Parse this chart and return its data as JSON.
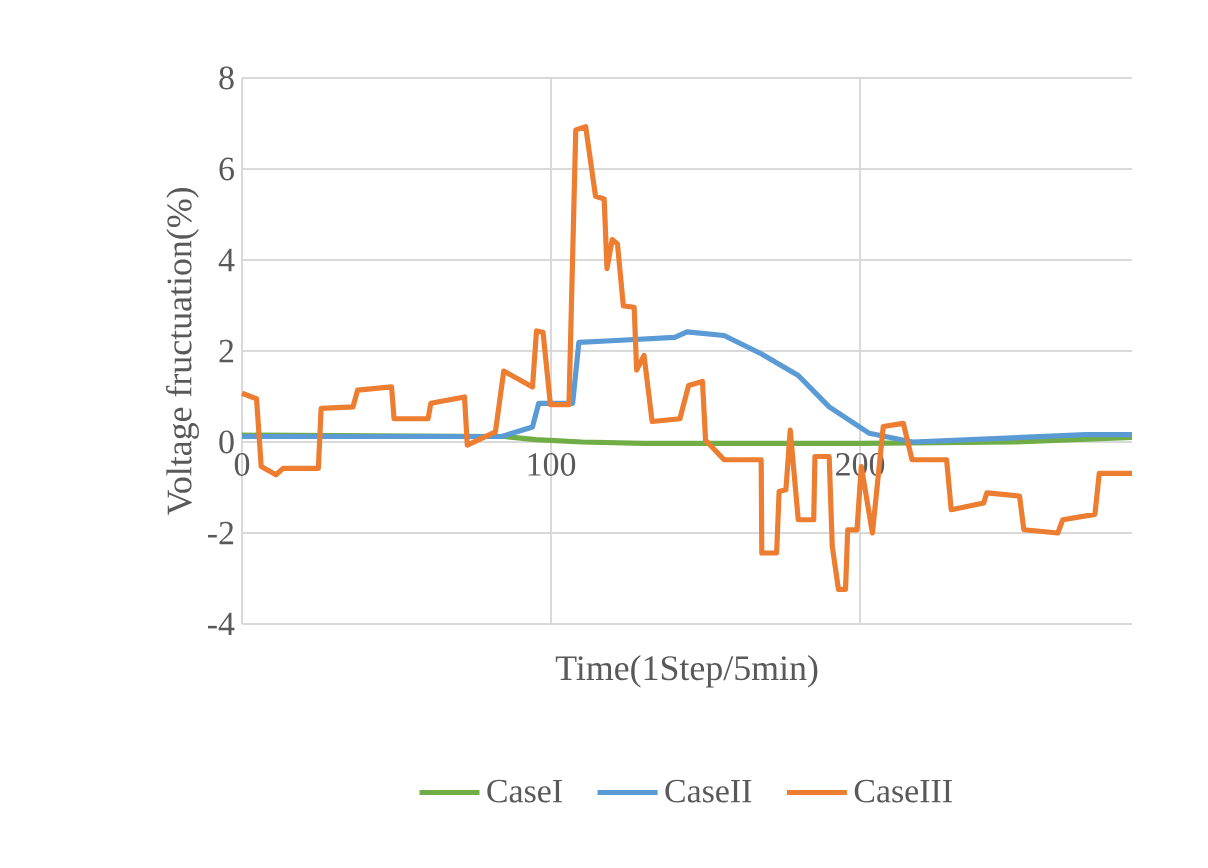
{
  "chart_data": {
    "type": "line",
    "xlabel": "Time(1Step/5min)",
    "ylabel": "Voltage fructuation(%)",
    "xlim": [
      0,
      288
    ],
    "xticks": [
      0,
      100,
      200
    ],
    "ylim": [
      -4,
      8
    ],
    "yticks": [
      -4,
      -2,
      0,
      2,
      4,
      6,
      8
    ],
    "grid": true,
    "legend": "bottom",
    "marker": "none",
    "line_style": "solid",
    "series": [
      {
        "name": "CaseI",
        "color": "#70ad47",
        "x": [
          0,
          85,
          95,
          110,
          130,
          200,
          250,
          288
        ],
        "values": [
          0.15,
          0.12,
          0.05,
          0.0,
          -0.03,
          -0.03,
          0.0,
          0.1
        ]
      },
      {
        "name": "CaseII",
        "color": "#5b9bd5",
        "x": [
          0,
          84,
          94,
          96,
          107,
          109,
          121,
          140,
          144,
          156,
          168,
          180,
          190,
          203,
          217,
          273,
          288
        ],
        "values": [
          0.12,
          0.12,
          0.33,
          0.85,
          0.85,
          2.19,
          2.23,
          2.3,
          2.42,
          2.34,
          1.94,
          1.46,
          0.77,
          0.19,
          0.0,
          0.16,
          0.16
        ]
      },
      {
        "name": "CaseIII",
        "color": "#ed7d31",
        "x": [
          0,
          4.7,
          6.2,
          11,
          13.3,
          24.7,
          25.6,
          35.9,
          37.4,
          48.4,
          49.2,
          60.2,
          61.1,
          72,
          72.9,
          82,
          84.7,
          94,
          95.3,
          97.4,
          99.8,
          105.8,
          108,
          111.2,
          114.4,
          117.2,
          118.1,
          119.8,
          121.5,
          123.4,
          126.9,
          127.7,
          130.1,
          132.7,
          141.7,
          144.5,
          149,
          150,
          156,
          168,
          168.2,
          173,
          173.8,
          176,
          177.4,
          180,
          185,
          185.4,
          190,
          191,
          193,
          195.3,
          196,
          199,
          200.4,
          204,
          207.5,
          214,
          216.8,
          228,
          229.5,
          240,
          241,
          251.6,
          253,
          264,
          265.6,
          276,
          277.4,
          288
        ],
        "values": [
          1.07,
          0.95,
          -0.54,
          -0.72,
          -0.58,
          -0.58,
          0.74,
          0.77,
          1.14,
          1.21,
          0.51,
          0.51,
          0.85,
          0.99,
          -0.07,
          0.22,
          1.56,
          1.21,
          2.44,
          2.41,
          0.82,
          0.82,
          6.86,
          6.93,
          5.4,
          5.34,
          3.81,
          4.45,
          4.35,
          2.99,
          2.96,
          1.58,
          1.9,
          0.45,
          0.51,
          1.24,
          1.33,
          0.04,
          -0.39,
          -0.39,
          -2.44,
          -2.44,
          -1.09,
          -1.05,
          0.26,
          -1.71,
          -1.71,
          -0.32,
          -0.32,
          -2.29,
          -3.24,
          -3.24,
          -1.93,
          -1.93,
          -0.54,
          -2.0,
          0.34,
          0.41,
          -0.39,
          -0.39,
          -1.49,
          -1.34,
          -1.12,
          -1.19,
          -1.93,
          -2.0,
          -1.71,
          -1.59,
          -0.69,
          -0.69
        ]
      }
    ]
  }
}
